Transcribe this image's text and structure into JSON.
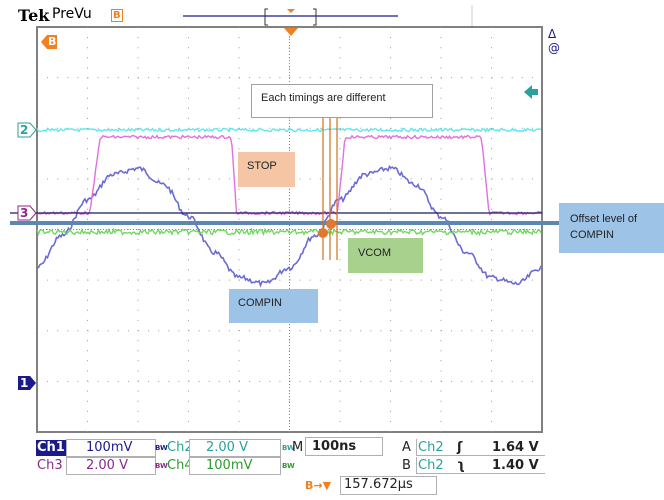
{
  "header": {
    "brand": "Tek",
    "mode": "PreVu",
    "trigger_marker": "B"
  },
  "side_labels": {
    "delta": "Δ",
    "at": "@"
  },
  "markers": {
    "ch1": "1",
    "ch2": "2",
    "ch3": "3",
    "trigger": "B"
  },
  "readouts": {
    "ch1": {
      "label": "Ch1",
      "scale": "100mV",
      "bw": "BW"
    },
    "ch2": {
      "label": "Ch2",
      "scale": "2.00 V",
      "bw": "BW"
    },
    "ch3": {
      "label": "Ch3",
      "scale": "2.00 V",
      "bw": "BW"
    },
    "ch4": {
      "label": "Ch4",
      "scale": "100mV",
      "bw": "BW"
    },
    "timebase": {
      "label": "M",
      "value": "100ns"
    },
    "trigger_a": {
      "label": "A",
      "source": "Ch2",
      "slope": "rising",
      "level": "1.64 V"
    },
    "trigger_b": {
      "label": "B",
      "source": "Ch2",
      "slope": "falling",
      "level": "1.40 V"
    },
    "delay": {
      "label": "B→▼",
      "value": "157.672µs"
    }
  },
  "annotations": {
    "timings": "Each timings are different",
    "stop": "STOP",
    "vcom": "VCOM",
    "compin": "COMPIN",
    "offset": "Offset level of COMPIN"
  },
  "colors": {
    "ch1": "#1a1a8c",
    "ch1_trace": "#6b6bd6",
    "ch2": "#2aa19a",
    "ch2_trace": "#5ee8ee",
    "ch3": "#8b2a8b",
    "ch3_trace": "#e070e0",
    "ch4": "#2e9a2e",
    "ch4_trace": "#70d860",
    "trigger": "#f08020",
    "stop_box": "#f5c6a5",
    "vcom_box": "#a9d18e",
    "compin_box": "#9dc3e6",
    "offset_line": "#5b87b0",
    "cursor": "#d07020"
  },
  "chart_data": {
    "type": "line",
    "xlabel": "",
    "ylabel": "",
    "x_unit": "ns",
    "xlim": [
      0,
      1000
    ],
    "x_per_div": 100,
    "grid": true,
    "series": [
      {
        "name": "Ch1",
        "unit": "mV",
        "per_div": 100,
        "x": [
          0,
          50,
          100,
          150,
          200,
          250,
          300,
          350,
          400,
          450,
          500,
          550,
          600,
          650,
          700,
          750,
          800,
          850,
          900,
          950,
          1000
        ],
        "y": [
          228,
          291,
          362,
          412,
          424,
          392,
          329,
          258,
          208,
          196,
          228,
          291,
          362,
          412,
          424,
          392,
          329,
          258,
          208,
          196,
          228
        ]
      },
      {
        "name": "Ch2",
        "unit": "V",
        "per_div": 2,
        "x": [
          0,
          1000
        ],
        "y": [
          0,
          0
        ]
      },
      {
        "name": "Ch3",
        "unit": "V",
        "per_div": 2,
        "x": [
          0,
          105,
          125,
          385,
          395,
          595,
          610,
          880,
          895,
          1000
        ],
        "y": [
          0,
          0,
          3,
          3,
          0,
          0,
          3,
          3,
          0,
          0
        ]
      },
      {
        "name": "Ch4",
        "unit": "mV",
        "per_div": 100,
        "x": [
          0,
          1000
        ],
        "y": [
          0,
          0
        ]
      }
    ]
  }
}
